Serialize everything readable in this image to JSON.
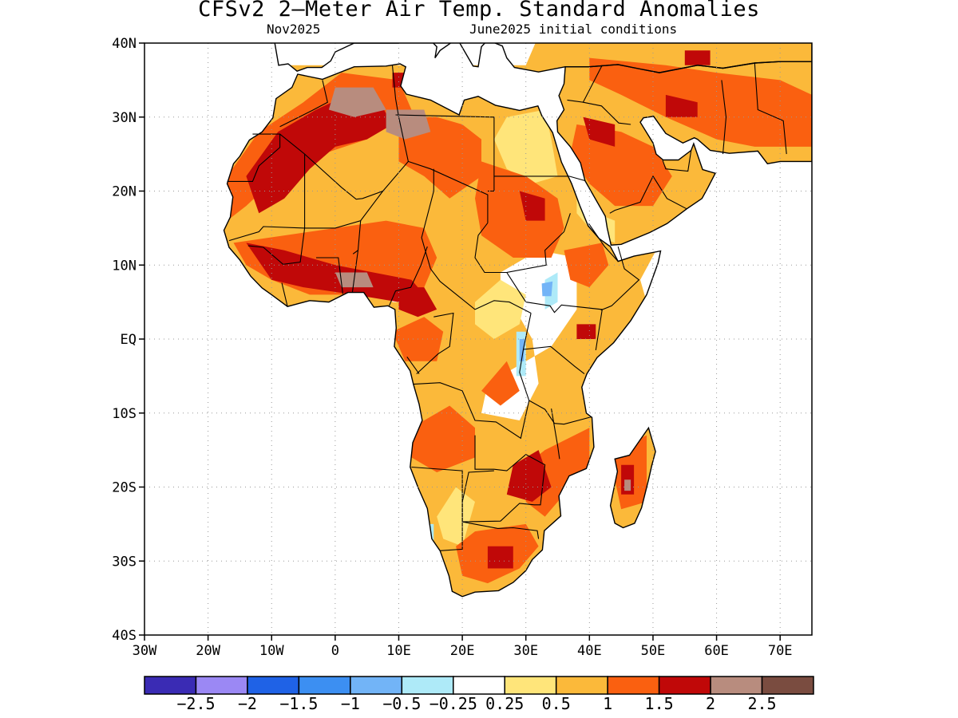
{
  "title": "CFSv2 2—Meter Air Temp. Standard Anomalies",
  "subtitle_left": "Nov2025",
  "subtitle_right": "June2025 initial conditions",
  "map": {
    "lon_range": [
      -30,
      75
    ],
    "lat_range": [
      -40,
      40
    ],
    "lat_ticks": [
      {
        "value": 40,
        "label": "40N"
      },
      {
        "value": 30,
        "label": "30N"
      },
      {
        "value": 20,
        "label": "20N"
      },
      {
        "value": 10,
        "label": "10N"
      },
      {
        "value": 0,
        "label": "EQ"
      },
      {
        "value": -10,
        "label": "10S"
      },
      {
        "value": -20,
        "label": "20S"
      },
      {
        "value": -30,
        "label": "30S"
      },
      {
        "value": -40,
        "label": "40S"
      }
    ],
    "lon_ticks": [
      {
        "value": -30,
        "label": "30W"
      },
      {
        "value": -20,
        "label": "20W"
      },
      {
        "value": -10,
        "label": "10W"
      },
      {
        "value": 0,
        "label": "0"
      },
      {
        "value": 10,
        "label": "10E"
      },
      {
        "value": 20,
        "label": "20E"
      },
      {
        "value": 30,
        "label": "30E"
      },
      {
        "value": 40,
        "label": "40E"
      },
      {
        "value": 50,
        "label": "50E"
      },
      {
        "value": 60,
        "label": "60E"
      },
      {
        "value": 70,
        "label": "70E"
      }
    ],
    "grid": true
  },
  "colorbar": {
    "colors": [
      "#3a2bb4",
      "#9b88f4",
      "#1f62e6",
      "#3c8ff2",
      "#72b4f7",
      "#aeeaf8",
      "#ffffff",
      "#ffe57a",
      "#fbb93a",
      "#fa6010",
      "#c00808",
      "#b88c7e",
      "#7a4c40"
    ],
    "labels": [
      "−2.5",
      "−2",
      "−1.5",
      "−1",
      "−0.5",
      "−0.25",
      "0.25",
      "0.5",
      "1",
      "1.5",
      "2",
      "2.5"
    ]
  },
  "colors": {
    "neg_weak": "#aeeaf8",
    "neg_mod": "#72b4f7",
    "pos_weak": "#ffe57a",
    "pos_low": "#fbb93a",
    "pos_mid": "#fa6010",
    "pos_high": "#c00808",
    "pos_vhigh": "#b88c7e",
    "pos_ext": "#7a4c40"
  }
}
